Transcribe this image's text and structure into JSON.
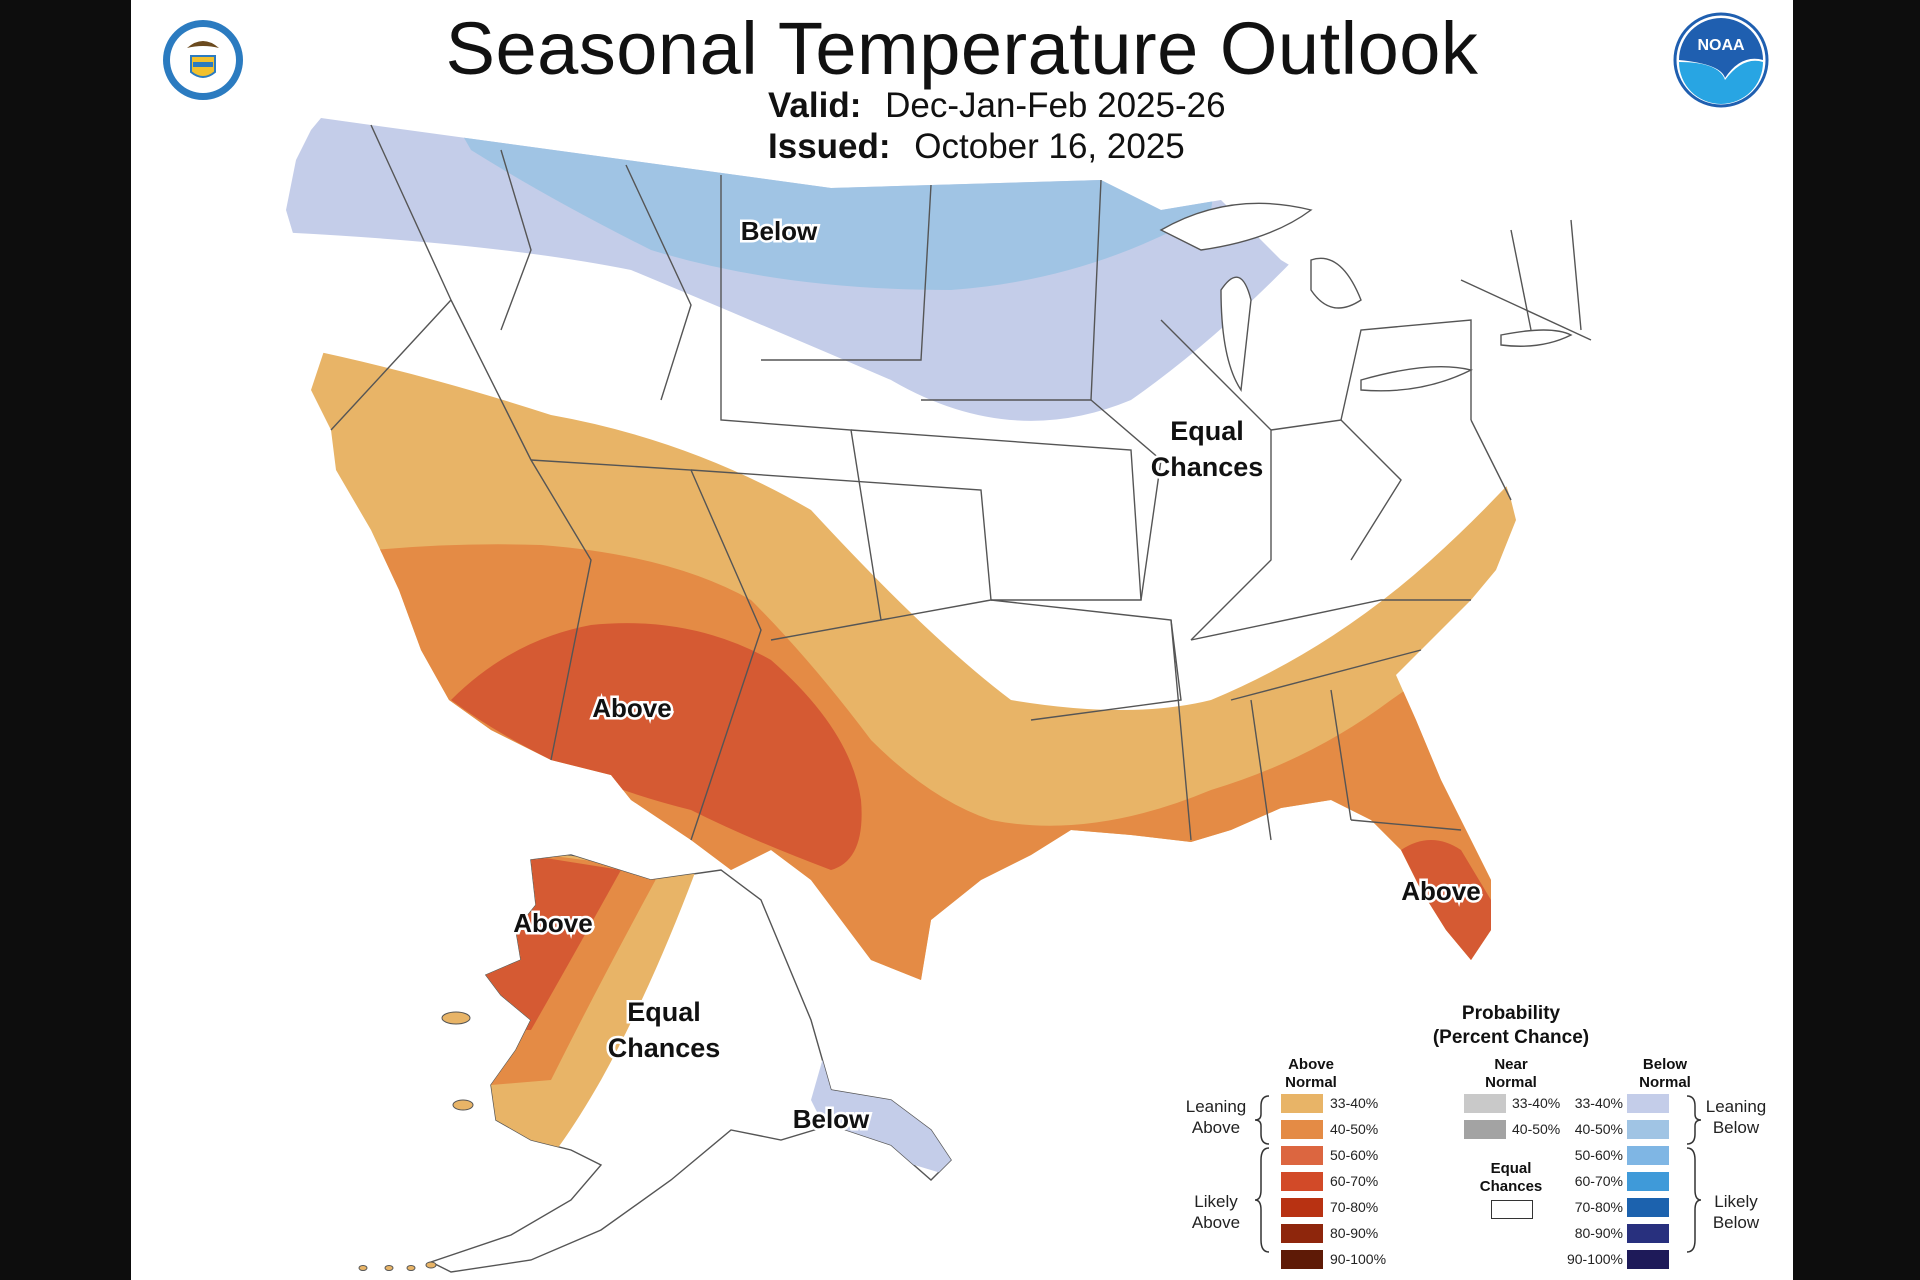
{
  "header": {
    "title": "Seasonal Temperature Outlook",
    "valid_label": "Valid:",
    "valid_value": "Dec-Jan-Feb 2025-26",
    "issued_label": "Issued:",
    "issued_value": "October 16, 2025"
  },
  "map_labels": {
    "conus_below": "Below",
    "conus_equal_line1": "Equal",
    "conus_equal_line2": "Chances",
    "conus_above_sw": "Above",
    "conus_above_fl": "Above",
    "ak_above": "Above",
    "ak_equal_line1": "Equal",
    "ak_equal_line2": "Chances",
    "ak_below": "Below"
  },
  "legend": {
    "title_line1": "Probability",
    "title_line2": "(Percent Chance)",
    "above_head_line1": "Above",
    "above_head_line2": "Normal",
    "near_head_line1": "Near",
    "near_head_line2": "Normal",
    "below_head_line1": "Below",
    "below_head_line2": "Normal",
    "leaning_above_line1": "Leaning",
    "leaning_above_line2": "Above",
    "likely_above_line1": "Likely",
    "likely_above_line2": "Above",
    "leaning_below_line1": "Leaning",
    "leaning_below_line2": "Below",
    "likely_below_line1": "Likely",
    "likely_below_line2": "Below",
    "equal_line1": "Equal",
    "equal_line2": "Chances",
    "above_rows": [
      {
        "label": "33-40%",
        "color": "#e8b467"
      },
      {
        "label": "40-50%",
        "color": "#e48b45"
      },
      {
        "label": "50-60%",
        "color": "#dc6640"
      },
      {
        "label": "60-70%",
        "color": "#d24a28"
      },
      {
        "label": "70-80%",
        "color": "#b83212"
      },
      {
        "label": "80-90%",
        "color": "#8e260c"
      },
      {
        "label": "90-100%",
        "color": "#5e1a06"
      }
    ],
    "near_rows": [
      {
        "label": "33-40%",
        "color": "#c9c9c9"
      },
      {
        "label": "40-50%",
        "color": "#a3a3a3"
      }
    ],
    "below_rows": [
      {
        "label": "33-40%",
        "color": "#c4cde9"
      },
      {
        "label": "40-50%",
        "color": "#a0c4e4"
      },
      {
        "label": "50-60%",
        "color": "#7fb6e4"
      },
      {
        "label": "60-70%",
        "color": "#3f9ad9"
      },
      {
        "label": "70-80%",
        "color": "#1c62ae"
      },
      {
        "label": "80-90%",
        "color": "#28307e"
      },
      {
        "label": "90-100%",
        "color": "#1e1a59"
      }
    ]
  },
  "logos": {
    "left": "department-of-commerce-seal",
    "right": "noaa-logo"
  },
  "colors": {
    "page_background": "#0d0d0d",
    "map_background": "#ffffff"
  }
}
